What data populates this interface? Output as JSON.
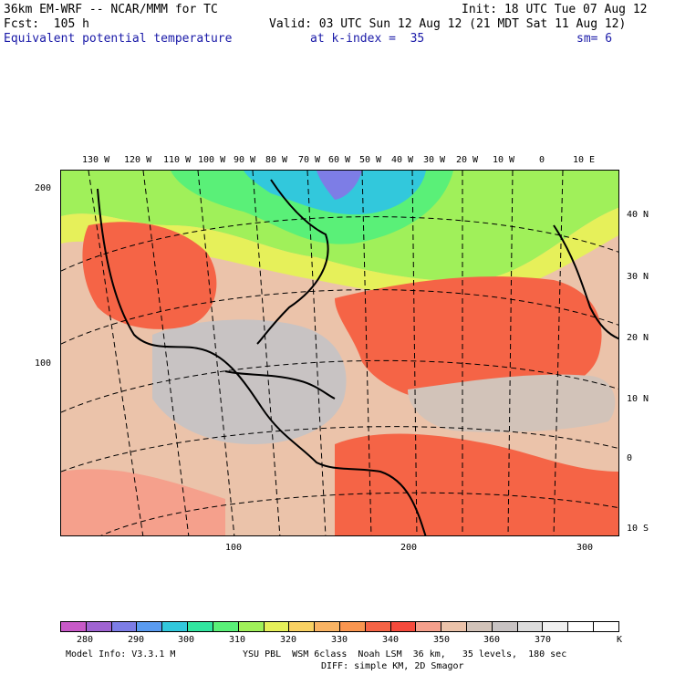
{
  "header": {
    "model": "36km EM-WRF -- NCAR/MMM for TC",
    "init": "Init: 18 UTC Tue 07 Aug 12",
    "fcst": "Fcst:  105 h",
    "valid": "Valid: 03 UTC Sun 12 Aug 12 (21 MDT Sat 11 Aug 12)",
    "field": "Equivalent potential temperature",
    "level": "at k-index =  35",
    "smooth": "sm= 6"
  },
  "map": {
    "lon_labels": [
      "130 W",
      "120 W",
      "110 W",
      "100 W",
      "90 W",
      "80 W",
      "70 W",
      "60 W",
      "50 W",
      "40 W",
      "30 W",
      "20 W",
      "10 W",
      "0",
      "10 E"
    ],
    "lat_labels": [
      "40 N",
      "30 N",
      "20 N",
      "10 N",
      "0",
      "10 S"
    ],
    "left_ticks": [
      "200",
      "100"
    ],
    "bottom_ticks": [
      "100",
      "200",
      "300"
    ]
  },
  "colorbar": {
    "colors": [
      "#c85ac8",
      "#a064d2",
      "#7d7de6",
      "#5a9bf0",
      "#32c8dc",
      "#32e6a0",
      "#5af078",
      "#a0f05a",
      "#e6f05a",
      "#fad264",
      "#fab464",
      "#fa9650",
      "#f56446",
      "#f54a3c",
      "#f5a08c",
      "#ebc3aa",
      "#d2c3b9",
      "#c8c3c3",
      "#dcdcdc",
      "#f0f0f0",
      "#ffffff",
      "#ffffff"
    ],
    "labels": [
      "280",
      "290",
      "300",
      "310",
      "320",
      "330",
      "340",
      "350",
      "360",
      "370"
    ],
    "unit": "K"
  },
  "footer": {
    "model_info": "Model Info: V3.3.1 M",
    "physics": "YSU PBL  WSM 6class  Noah LSM  36 km,   35 levels,  180 sec",
    "diff": "DIFF: simple KM, 2D Smagor"
  }
}
